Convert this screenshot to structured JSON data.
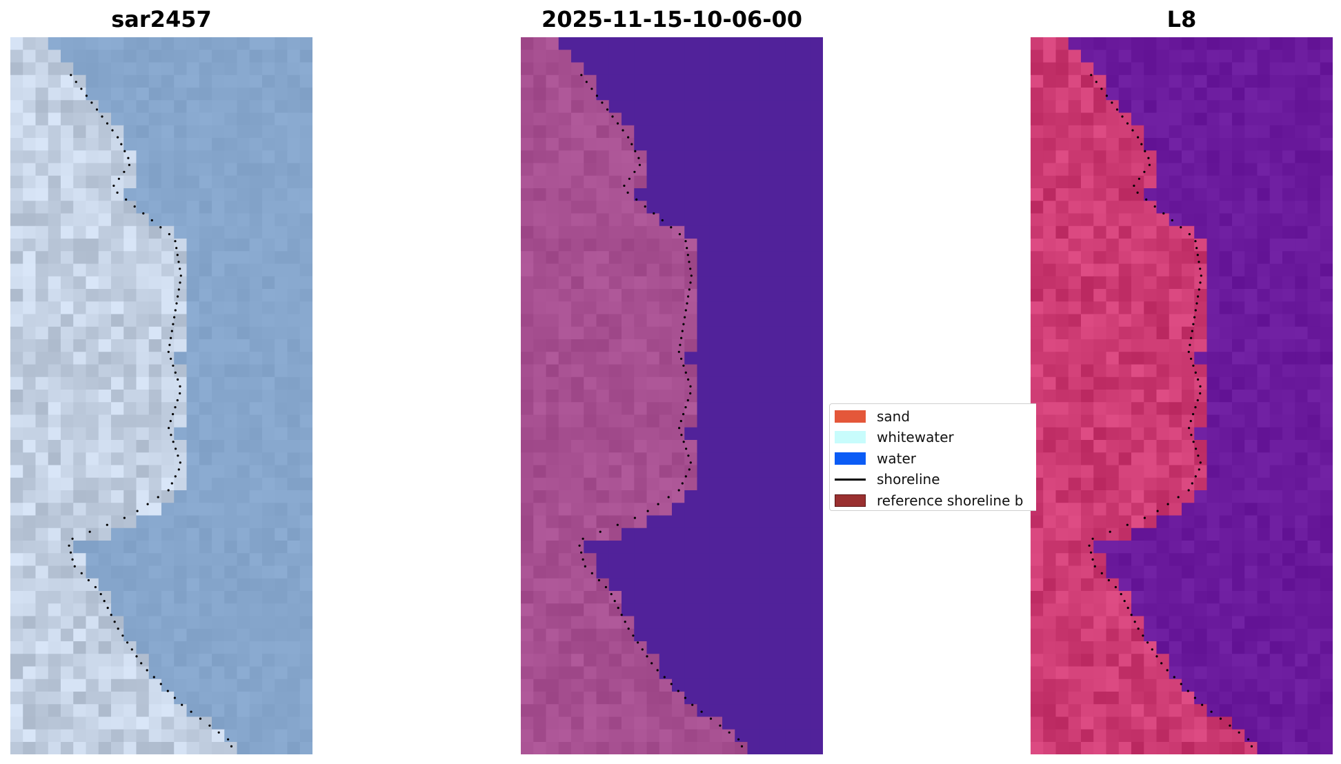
{
  "panels": [
    {
      "title": "sar2457",
      "palette": "rgb"
    },
    {
      "title": "2025-11-15-10-06-00",
      "palette": "classified"
    },
    {
      "title": "L8",
      "palette": "falsecolor"
    }
  ],
  "legend": {
    "items": [
      {
        "label": "sand",
        "kind": "patch",
        "color": "#e4573a"
      },
      {
        "label": "whitewater",
        "kind": "patch",
        "color": "#c8fcfc"
      },
      {
        "label": "water",
        "kind": "patch",
        "color": "#0b5cf5"
      },
      {
        "label": "shoreline",
        "kind": "line",
        "color": "#000000"
      },
      {
        "label": "reference shoreline b",
        "kind": "patch",
        "color": "#9a3030"
      }
    ]
  },
  "colors": {
    "sea_rgb": "#86a6cc",
    "land_rgb": "#c3d0e2",
    "water_class": "#51229a",
    "land_class": "#a64f90",
    "water_fc": "#6a1a9c",
    "land_fc": "#cc3a72",
    "shoreline_dots": "#000000"
  }
}
